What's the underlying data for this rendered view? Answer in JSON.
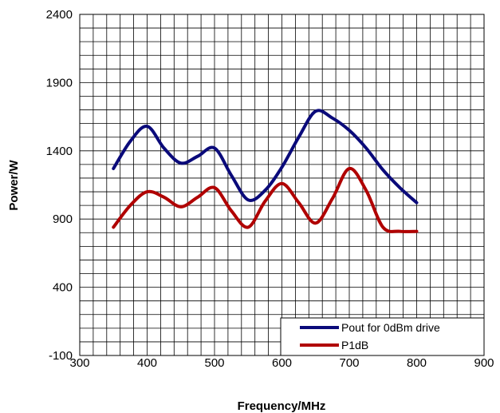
{
  "chart_data": {
    "type": "line",
    "xlabel": "Frequency/MHz",
    "ylabel": "Power/W",
    "xlim": [
      300,
      900
    ],
    "ylim": [
      -100,
      2400
    ],
    "x_ticks": [
      300,
      400,
      500,
      600,
      700,
      800,
      900
    ],
    "y_ticks": [
      -100,
      400,
      900,
      1400,
      1900,
      2400
    ],
    "x_tick_labels": [
      "300",
      "400",
      "500",
      "600",
      "700",
      "800",
      "900"
    ],
    "y_tick_labels": [
      "-100",
      "400",
      "900",
      "1400",
      "1900",
      "2400"
    ],
    "grid": true,
    "legend_position": "bottom-right",
    "series": [
      {
        "name": "Pout for 0dBm drive",
        "color": "#0a0a7a",
        "x": [
          350,
          375,
          400,
          425,
          450,
          475,
          500,
          525,
          550,
          575,
          600,
          625,
          650,
          675,
          700,
          725,
          750,
          775,
          800
        ],
        "y": [
          1270,
          1470,
          1580,
          1420,
          1310,
          1360,
          1420,
          1220,
          1040,
          1110,
          1280,
          1500,
          1690,
          1640,
          1550,
          1420,
          1260,
          1130,
          1020
        ]
      },
      {
        "name": "P1dB",
        "color": "#b00000",
        "x": [
          350,
          375,
          400,
          425,
          450,
          475,
          500,
          525,
          550,
          575,
          600,
          625,
          650,
          675,
          700,
          725,
          750,
          775,
          800
        ],
        "y": [
          840,
          1000,
          1100,
          1060,
          990,
          1060,
          1130,
          960,
          840,
          1030,
          1160,
          1020,
          870,
          1050,
          1270,
          1110,
          840,
          810,
          810
        ]
      }
    ]
  }
}
